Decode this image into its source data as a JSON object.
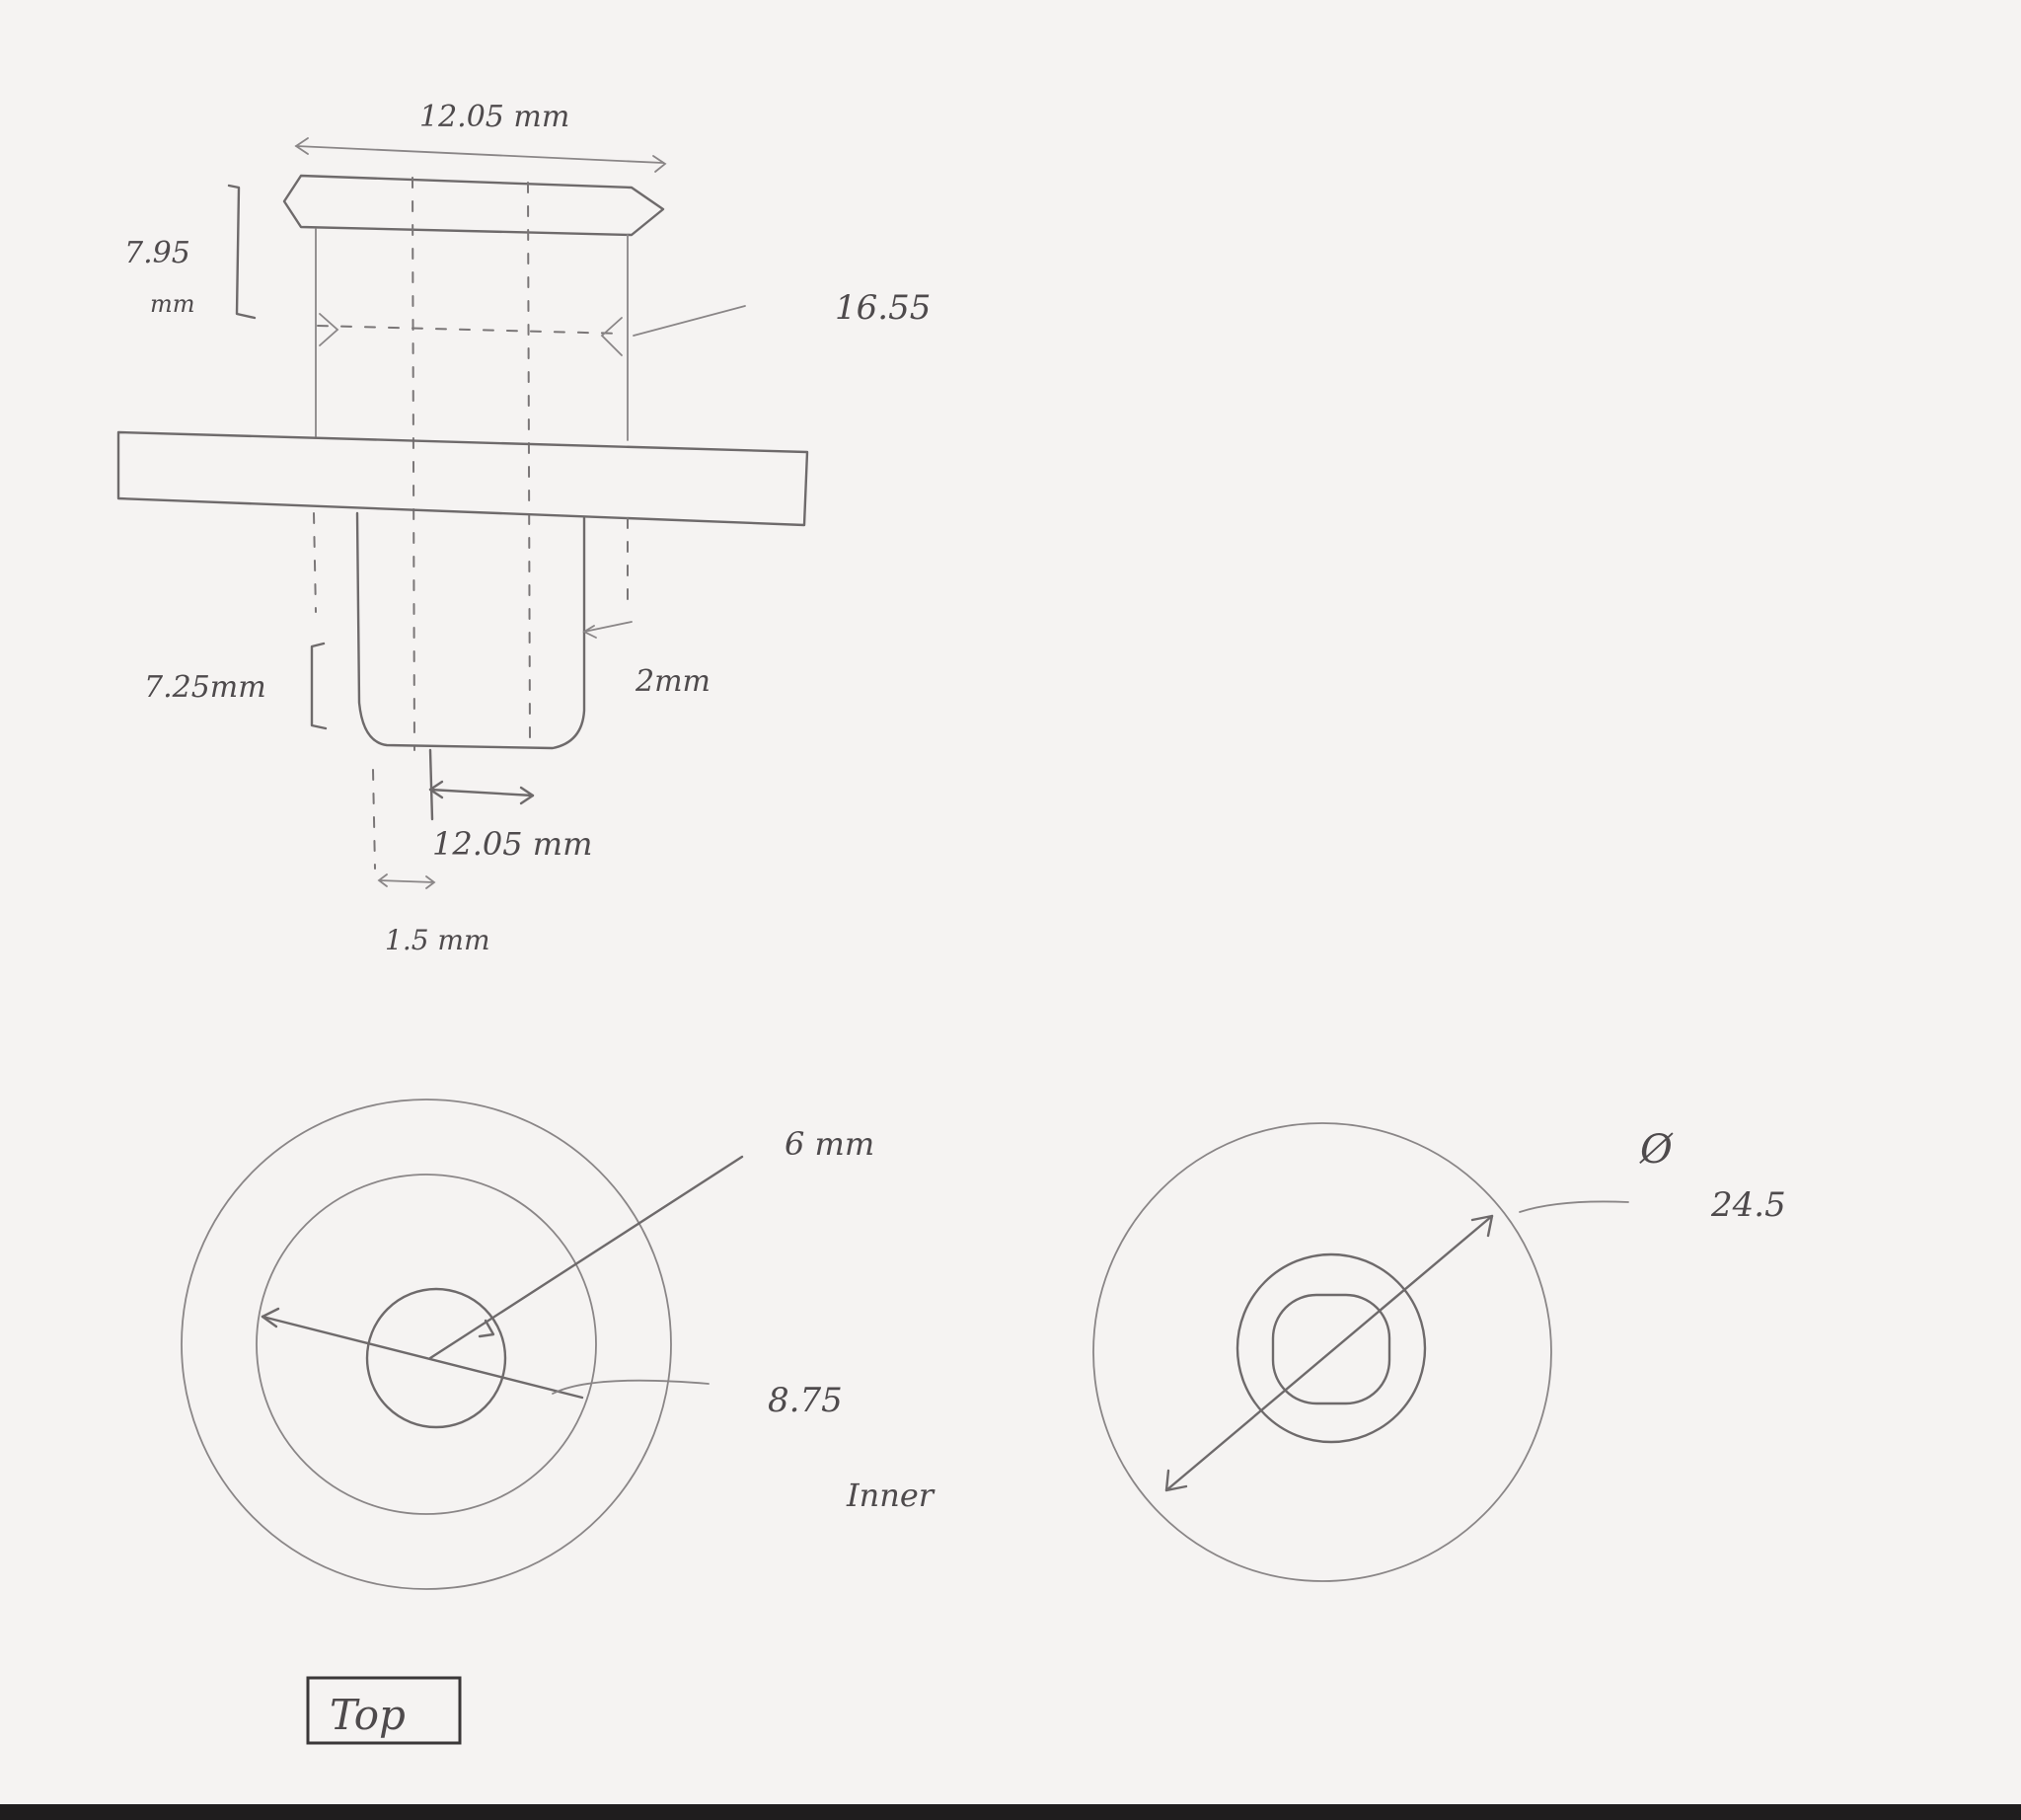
{
  "side_view": {
    "top_width": "12.05  mm",
    "cap_height": "7.95",
    "cap_height_unit": "mm",
    "outer_callout": "16.55",
    "bottom_height": "7.25mm",
    "wall_thickness": "2mm",
    "inner_width": "12.05  mm",
    "lip_width": "1.5  mm"
  },
  "top_view_a": {
    "hole_callout": "6 mm",
    "inner_callout": "8.75",
    "inner_label": "Inner"
  },
  "top_view_b": {
    "diameter_symbol": "Ø",
    "diameter_value": "24.5"
  },
  "view_label": "Top"
}
